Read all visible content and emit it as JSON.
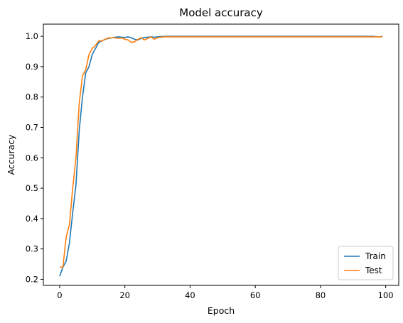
{
  "chart_data": {
    "type": "line",
    "title": "Model accuracy",
    "xlabel": "Epoch",
    "ylabel": "Accuracy",
    "xlim": [
      -5,
      104
    ],
    "ylim": [
      0.18,
      1.04
    ],
    "xticks": [
      0,
      20,
      40,
      60,
      80,
      100
    ],
    "yticks": [
      0.2,
      0.3,
      0.4,
      0.5,
      0.6,
      0.7,
      0.8,
      0.9,
      1.0
    ],
    "legend_position": "lower-right",
    "grid": false,
    "series": [
      {
        "name": "Train",
        "color": "#1f77b4",
        "values": [
          0.21,
          0.24,
          0.26,
          0.32,
          0.42,
          0.51,
          0.69,
          0.8,
          0.88,
          0.9,
          0.94,
          0.96,
          0.98,
          0.985,
          0.99,
          0.993,
          0.995,
          0.997,
          0.998,
          0.997,
          0.996,
          0.998,
          0.995,
          0.99,
          0.988,
          0.993,
          0.996,
          0.997,
          0.998,
          0.997,
          0.998,
          0.999,
          1.0,
          1.0,
          1.0,
          1.0,
          1.0,
          1.0,
          1.0,
          1.0,
          1.0,
          1.0,
          1.0,
          1.0,
          1.0,
          1.0,
          1.0,
          1.0,
          1.0,
          1.0,
          1.0,
          1.0,
          1.0,
          1.0,
          1.0,
          1.0,
          1.0,
          1.0,
          1.0,
          1.0,
          1.0,
          1.0,
          1.0,
          1.0,
          1.0,
          1.0,
          1.0,
          1.0,
          1.0,
          1.0,
          1.0,
          1.0,
          1.0,
          1.0,
          1.0,
          1.0,
          1.0,
          1.0,
          1.0,
          1.0,
          1.0,
          1.0,
          1.0,
          1.0,
          1.0,
          1.0,
          1.0,
          1.0,
          1.0,
          1.0,
          1.0,
          1.0,
          1.0,
          1.0,
          1.0,
          1.0,
          1.0,
          0.999,
          0.998,
          1.0
        ]
      },
      {
        "name": "Test",
        "color": "#ff7f0e",
        "values": [
          0.24,
          0.24,
          0.34,
          0.38,
          0.5,
          0.6,
          0.78,
          0.87,
          0.89,
          0.94,
          0.96,
          0.97,
          0.985,
          0.985,
          0.99,
          0.995,
          0.995,
          0.995,
          0.993,
          0.995,
          0.99,
          0.988,
          0.98,
          0.982,
          0.99,
          0.995,
          0.988,
          0.993,
          0.998,
          0.99,
          0.995,
          0.997,
          0.998,
          0.998,
          0.998,
          0.998,
          0.998,
          0.998,
          0.998,
          0.998,
          0.998,
          0.998,
          0.998,
          0.998,
          0.998,
          0.998,
          0.998,
          0.998,
          0.998,
          0.998,
          0.998,
          0.998,
          0.998,
          0.998,
          0.998,
          0.998,
          0.998,
          0.998,
          0.998,
          0.998,
          0.998,
          0.998,
          0.998,
          0.998,
          0.998,
          0.998,
          0.998,
          0.998,
          0.998,
          0.998,
          0.998,
          0.998,
          0.998,
          0.998,
          0.998,
          0.998,
          0.998,
          0.998,
          0.998,
          0.998,
          0.998,
          0.998,
          0.998,
          0.998,
          0.998,
          0.998,
          0.998,
          0.998,
          0.998,
          0.998,
          0.998,
          0.998,
          0.998,
          0.998,
          0.998,
          0.998,
          0.998,
          0.998,
          0.998,
          0.998
        ]
      }
    ]
  }
}
